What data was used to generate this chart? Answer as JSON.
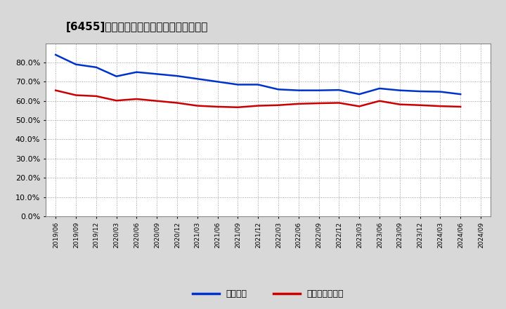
{
  "title": "[6455]　固定比率、固定長期適合率の推移",
  "x_labels": [
    "2019/06",
    "2019/09",
    "2019/12",
    "2020/03",
    "2020/06",
    "2020/09",
    "2020/12",
    "2021/03",
    "2021/06",
    "2021/09",
    "2021/12",
    "2022/03",
    "2022/06",
    "2022/09",
    "2022/12",
    "2023/03",
    "2023/06",
    "2023/09",
    "2023/12",
    "2024/03",
    "2024/06",
    "2024/09"
  ],
  "fixed_ratio": [
    0.84,
    0.79,
    0.775,
    0.728,
    0.75,
    0.74,
    0.73,
    0.715,
    0.7,
    0.685,
    0.685,
    0.66,
    0.655,
    0.655,
    0.657,
    0.635,
    0.665,
    0.655,
    0.65,
    0.648,
    0.635,
    null
  ],
  "fixed_long_ratio": [
    0.655,
    0.63,
    0.625,
    0.602,
    0.61,
    0.6,
    0.59,
    0.575,
    0.57,
    0.567,
    0.575,
    0.578,
    0.585,
    0.588,
    0.59,
    0.572,
    0.6,
    0.582,
    0.578,
    0.573,
    0.57,
    null
  ],
  "blue_color": "#0033cc",
  "red_color": "#cc0000",
  "bg_color": "#d8d8d8",
  "plot_bg_color": "#ffffff",
  "grid_color": "#999999",
  "title_fontsize": 11,
  "legend_label_blue": "固定比率",
  "legend_label_red": "固定長期適合率",
  "ylim": [
    0.0,
    0.9
  ],
  "yticks": [
    0.0,
    0.1,
    0.2,
    0.3,
    0.4,
    0.5,
    0.6,
    0.7,
    0.8
  ]
}
